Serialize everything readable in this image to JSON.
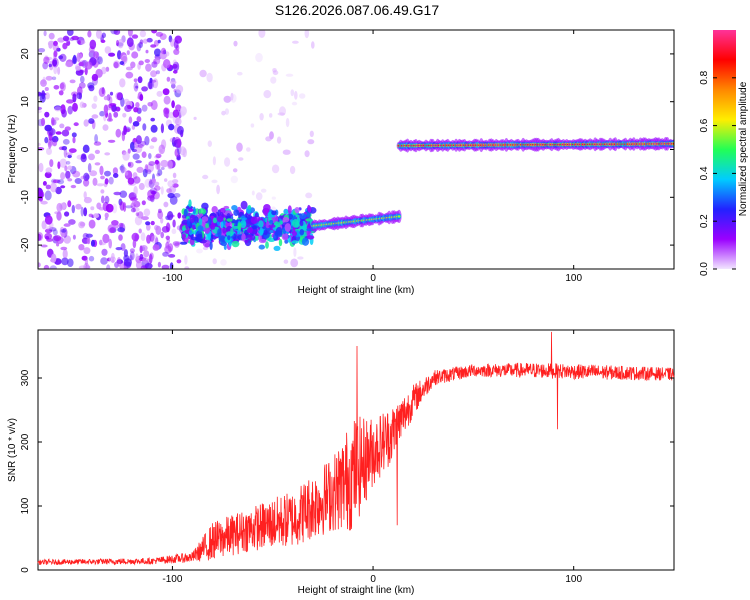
{
  "figure": {
    "title": "S126.2026.087.06.49.G17"
  },
  "chart_data": [
    {
      "type": "heatmap",
      "xlabel": "Height of straight line (km)",
      "ylabel": "Frequency (Hz)",
      "xlim": [
        -167,
        150
      ],
      "ylim": [
        -25,
        25
      ],
      "xticks": [
        -100,
        0,
        100
      ],
      "yticks": [
        -20,
        -10,
        0,
        10,
        20
      ],
      "colorbar": {
        "label": "Normalized spectral amplitude",
        "range": [
          0,
          1
        ],
        "ticks": [
          0.0,
          0.2,
          0.4,
          0.6,
          0.8
        ],
        "colors": [
          "#f2e6ff",
          "#9a00ff",
          "#2222ff",
          "#00ccff",
          "#22ff55",
          "#ffee00",
          "#ff8800",
          "#ff0000",
          "#ff3399"
        ]
      },
      "features": [
        {
          "kind": "noise",
          "x_range": [
            -167,
            -95
          ],
          "f_range": [
            -25,
            25
          ],
          "level": 0.12
        },
        {
          "kind": "noise",
          "x_range": [
            -95,
            -30
          ],
          "f_range": [
            -25,
            25
          ],
          "level": 0.02
        },
        {
          "kind": "cluster",
          "x_range": [
            -95,
            -30
          ],
          "f_center": -16,
          "f_spread": 3.5,
          "level": 0.25
        },
        {
          "kind": "track",
          "x_range": [
            -30,
            13
          ],
          "f_start": -16,
          "f_end": -14,
          "level": 0.55
        },
        {
          "kind": "track",
          "x_range": [
            13,
            150
          ],
          "f_start": 0.8,
          "f_end": 1.2,
          "level": 0.85
        }
      ]
    },
    {
      "type": "line",
      "xlabel": "Height of straight line (km)",
      "ylabel": "SNR (10 * v/v)",
      "xlim": [
        -167,
        150
      ],
      "ylim": [
        0,
        375
      ],
      "xticks": [
        -100,
        0,
        100
      ],
      "yticks": [
        0,
        100,
        200,
        300
      ],
      "color": "#ff2020",
      "envelope": [
        {
          "x": -167,
          "y": 12,
          "noise": 4
        },
        {
          "x": -110,
          "y": 14,
          "noise": 5
        },
        {
          "x": -90,
          "y": 20,
          "noise": 8
        },
        {
          "x": -80,
          "y": 45,
          "noise": 30
        },
        {
          "x": -60,
          "y": 65,
          "noise": 35
        },
        {
          "x": -40,
          "y": 80,
          "noise": 45
        },
        {
          "x": -20,
          "y": 120,
          "noise": 60
        },
        {
          "x": -10,
          "y": 150,
          "noise": 90
        },
        {
          "x": 0,
          "y": 185,
          "noise": 55
        },
        {
          "x": 10,
          "y": 215,
          "noise": 45
        },
        {
          "x": 20,
          "y": 265,
          "noise": 25
        },
        {
          "x": 30,
          "y": 300,
          "noise": 12
        },
        {
          "x": 50,
          "y": 312,
          "noise": 10
        },
        {
          "x": 80,
          "y": 312,
          "noise": 12
        },
        {
          "x": 100,
          "y": 310,
          "noise": 12
        },
        {
          "x": 150,
          "y": 306,
          "noise": 10
        }
      ],
      "spikes": [
        {
          "x": -8,
          "y": 350
        },
        {
          "x": 12,
          "y": 70
        },
        {
          "x": 89,
          "y": 372
        },
        {
          "x": 92,
          "y": 220
        }
      ]
    }
  ]
}
